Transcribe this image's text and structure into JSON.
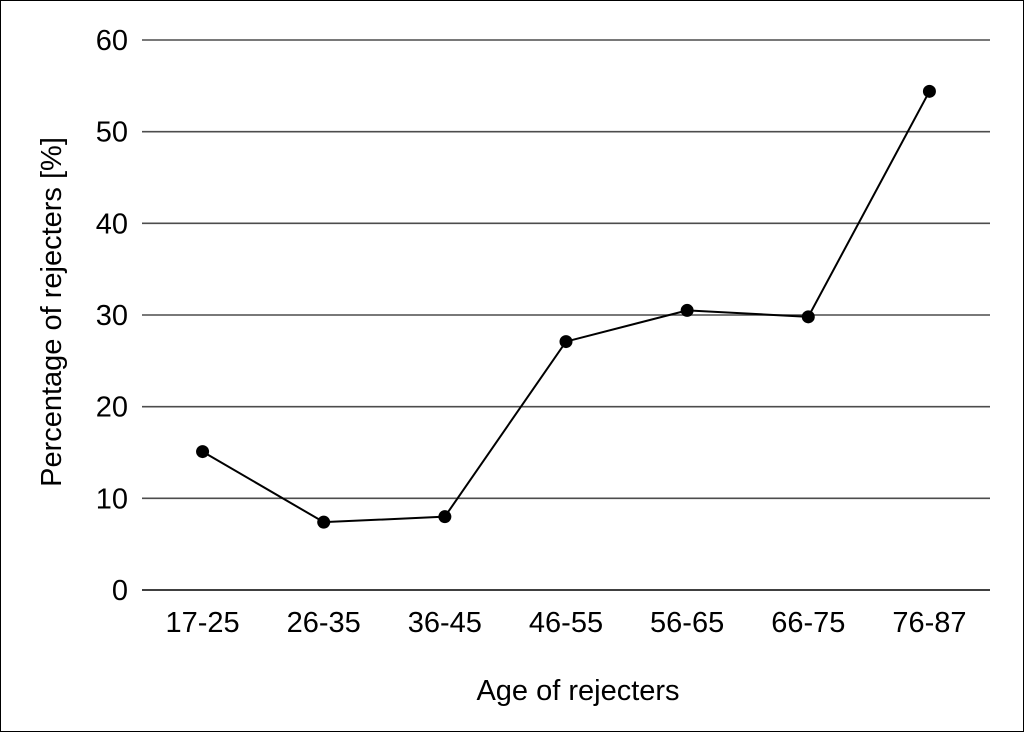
{
  "chart_data": {
    "type": "line",
    "xlabel": "Age of rejecters",
    "ylabel": "Percentage of rejecters [%]",
    "categories": [
      "17-25",
      "26-35",
      "36-45",
      "46-55",
      "56-65",
      "66-75",
      "76-87"
    ],
    "series": [
      {
        "values": [
          15.1,
          7.4,
          8.0,
          27.1,
          30.5,
          29.8,
          54.4
        ]
      }
    ],
    "ylim": [
      0,
      60
    ],
    "yticks": [
      "0",
      "10",
      "20",
      "30",
      "40",
      "50",
      "60"
    ],
    "grid": "horizontal",
    "legend": "none",
    "colors": {
      "line": "#000000",
      "marker": "#000000",
      "grid": "#4d4d4d"
    }
  }
}
